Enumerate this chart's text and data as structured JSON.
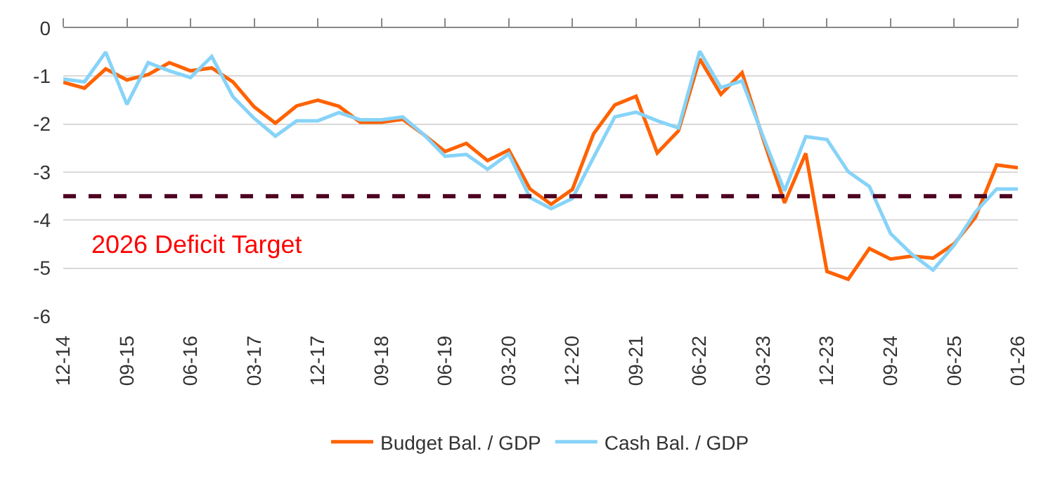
{
  "chart_data": {
    "type": "line",
    "categories": [
      "12-14",
      null,
      null,
      "09-15",
      null,
      null,
      "06-16",
      null,
      null,
      "03-17",
      null,
      null,
      "12-17",
      null,
      null,
      "09-18",
      null,
      null,
      "06-19",
      null,
      null,
      "03-20",
      null,
      null,
      "12-20",
      null,
      null,
      "09-21",
      null,
      null,
      "06-22",
      null,
      null,
      "03-23",
      null,
      null,
      "12-23",
      null,
      null,
      "09-24",
      null,
      null,
      "06-25",
      null,
      null,
      "01-26"
    ],
    "series": [
      {
        "name": "Budget Bal. / GDP",
        "color": "#ff6200",
        "values": [
          -1.13,
          -1.25,
          -0.85,
          -1.08,
          -0.97,
          -0.72,
          -0.89,
          -0.83,
          -1.12,
          -1.64,
          -1.98,
          -1.62,
          -1.5,
          -1.63,
          -1.96,
          -1.96,
          -1.9,
          -2.22,
          -2.57,
          -2.4,
          -2.76,
          -2.54,
          -3.35,
          -3.67,
          -3.36,
          -2.2,
          -1.6,
          -1.42,
          -2.6,
          -2.14,
          -0.64,
          -1.38,
          -0.93,
          -2.32,
          -3.64,
          -2.61,
          -5.07,
          -5.23,
          -4.59,
          -4.81,
          -4.75,
          -4.79,
          -4.49,
          -3.94,
          -2.85,
          -2.91
        ]
      },
      {
        "name": "Cash Bal. / GDP",
        "color": "#87d3f8",
        "values": [
          -1.06,
          -1.12,
          -0.5,
          -1.59,
          -0.72,
          -0.89,
          -1.03,
          -0.59,
          -1.43,
          -1.88,
          -2.25,
          -1.93,
          -1.93,
          -1.76,
          -1.91,
          -1.91,
          -1.85,
          -2.22,
          -2.67,
          -2.63,
          -2.94,
          -2.62,
          -3.53,
          -3.76,
          -3.55,
          -2.69,
          -1.85,
          -1.75,
          -1.93,
          -2.08,
          -0.48,
          -1.24,
          -1.1,
          -2.27,
          -3.39,
          -2.26,
          -2.32,
          -2.99,
          -3.3,
          -4.28,
          -4.71,
          -5.04,
          -4.52,
          -3.83,
          -3.35,
          -3.35
        ]
      }
    ],
    "ylim": [
      -6,
      0
    ],
    "yticks": [
      -6,
      -5,
      -4,
      -3,
      -2,
      -1,
      0
    ],
    "ref_lines": [
      {
        "axis": "y",
        "value": -3.5,
        "color": "#4d0020",
        "line_style": "dashed"
      }
    ],
    "annotations": [
      "2026 Deficit Target"
    ],
    "grid": "y",
    "legend": "bottom",
    "marker": "none",
    "line_style": "solid"
  }
}
